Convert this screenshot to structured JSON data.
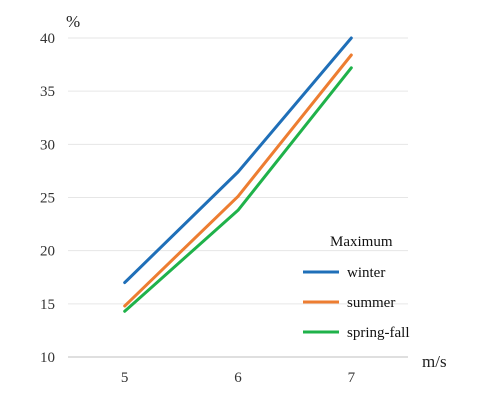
{
  "chart_data": {
    "type": "line",
    "x": [
      5,
      6,
      7
    ],
    "series": [
      {
        "name": "winter",
        "values": [
          17.0,
          27.4,
          40.0
        ],
        "color": "#1f6fb8"
      },
      {
        "name": "summer",
        "values": [
          14.8,
          25.1,
          38.4
        ],
        "color": "#ed7d31"
      },
      {
        "name": "spring-fall",
        "values": [
          14.3,
          23.8,
          37.2
        ],
        "color": "#1fb24a"
      }
    ],
    "y_unit": "%",
    "x_unit": "m/s",
    "legend_title": "Maximum",
    "legend_position": "right",
    "ylim": [
      10,
      40
    ],
    "yticks": [
      10,
      15,
      20,
      25,
      30,
      35,
      40
    ],
    "xticks": [
      5,
      6,
      7
    ],
    "grid": "horizontal",
    "gridColor": "#e6e6e6",
    "axisColor": "#bfbfbf"
  }
}
